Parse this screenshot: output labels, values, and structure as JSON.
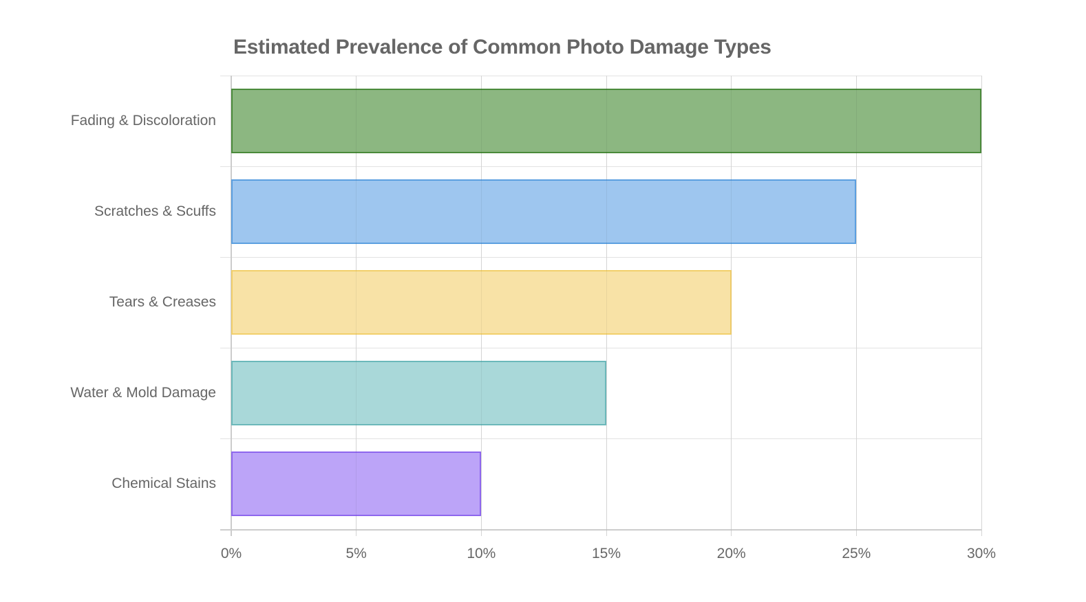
{
  "chart_data": {
    "type": "bar",
    "orientation": "horizontal",
    "title": "Estimated Prevalence of Common Photo Damage Types",
    "xlabel": "",
    "ylabel": "",
    "categories": [
      "Fading & Discoloration",
      "Scratches & Scuffs",
      "Tears & Creases",
      "Water & Mold Damage",
      "Chemical Stains"
    ],
    "values": [
      30,
      25,
      20,
      15,
      10
    ],
    "unit": "%",
    "xlim": [
      0,
      30
    ],
    "xticks": [
      "0%",
      "5%",
      "10%",
      "15%",
      "20%",
      "25%",
      "30%"
    ],
    "grid": true,
    "legend": null,
    "colors": [
      {
        "fill": "#8cb781",
        "border": "#4a8a3a"
      },
      {
        "fill": "#9ec6ef",
        "border": "#5b9fe0"
      },
      {
        "fill": "#f8e2a6",
        "border": "#f2cf6b"
      },
      {
        "fill": "#a9d8d9",
        "border": "#6bb8ba"
      },
      {
        "fill": "#bca4f8",
        "border": "#8e66ee"
      }
    ]
  }
}
